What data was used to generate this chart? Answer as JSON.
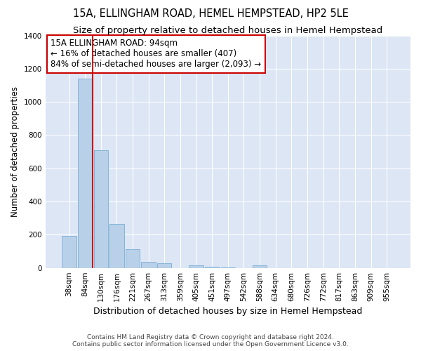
{
  "title": "15A, ELLINGHAM ROAD, HEMEL HEMPSTEAD, HP2 5LE",
  "subtitle": "Size of property relative to detached houses in Hemel Hempstead",
  "xlabel": "Distribution of detached houses by size in Hemel Hempstead",
  "ylabel": "Number of detached properties",
  "categories": [
    "38sqm",
    "84sqm",
    "130sqm",
    "176sqm",
    "221sqm",
    "267sqm",
    "313sqm",
    "359sqm",
    "405sqm",
    "451sqm",
    "497sqm",
    "542sqm",
    "588sqm",
    "634sqm",
    "680sqm",
    "726sqm",
    "772sqm",
    "817sqm",
    "863sqm",
    "909sqm",
    "955sqm"
  ],
  "values": [
    193,
    1140,
    710,
    265,
    112,
    35,
    28,
    0,
    14,
    7,
    4,
    0,
    14,
    0,
    0,
    0,
    0,
    0,
    0,
    0,
    0
  ],
  "bar_color": "#b8d0e8",
  "bar_edge_color": "#7aadd4",
  "vline_color": "#cc0000",
  "annotation_text": "15A ELLINGHAM ROAD: 94sqm\n← 16% of detached houses are smaller (407)\n84% of semi-detached houses are larger (2,093) →",
  "annotation_box_color": "#ffffff",
  "annotation_box_edge_color": "#cc0000",
  "ylim": [
    0,
    1400
  ],
  "yticks": [
    0,
    200,
    400,
    600,
    800,
    1000,
    1200,
    1400
  ],
  "bg_color": "#dce6f5",
  "footer_line1": "Contains HM Land Registry data © Crown copyright and database right 2024.",
  "footer_line2": "Contains public sector information licensed under the Open Government Licence v3.0.",
  "title_fontsize": 10.5,
  "subtitle_fontsize": 9.5,
  "xlabel_fontsize": 9,
  "ylabel_fontsize": 8.5,
  "tick_fontsize": 7.5,
  "annotation_fontsize": 8.5
}
